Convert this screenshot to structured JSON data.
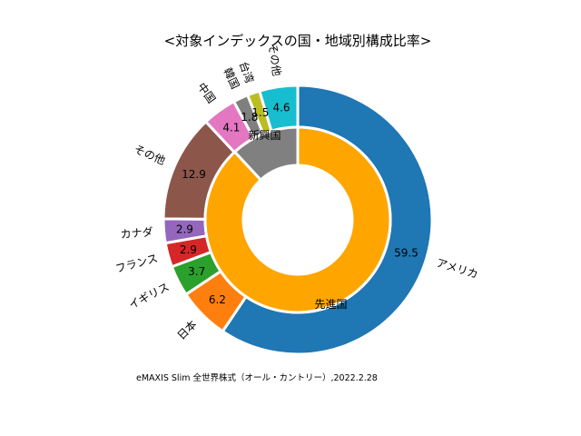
{
  "chart_data": {
    "type": "pie",
    "title": "<対象インデックスの国・地域別構成比率>",
    "caption": "eMAXIS Slim 全世界株式（オール・カントリー）,2022.2.28",
    "outer_ring": {
      "categories": [
        "アメリカ",
        "日本",
        "イギリス",
        "フランス",
        "カナダ",
        "その他",
        "中国",
        "韓国",
        "台湾",
        "その他"
      ],
      "values": [
        59.5,
        6.2,
        3.7,
        2.9,
        2.9,
        12.9,
        4.1,
        1.8,
        1.5,
        4.6
      ],
      "value_labels": [
        "59.5",
        "6.2",
        "3.7",
        "2.9",
        "2.9",
        "12.9",
        "4.1",
        "1.8",
        "1.5",
        "4.6"
      ],
      "colors": [
        "#1f77b4",
        "#ff7f0e",
        "#2ca02c",
        "#d62728",
        "#9467bd",
        "#8c564b",
        "#e377c2",
        "#7f7f7f",
        "#bcbd22",
        "#17becf"
      ]
    },
    "inner_ring": {
      "categories": [
        "先進国",
        "新興国"
      ],
      "values": [
        88.1,
        11.9
      ],
      "colors": [
        "#ffa500",
        "#808080"
      ]
    },
    "start_angle": "top",
    "direction": "clockwise"
  }
}
